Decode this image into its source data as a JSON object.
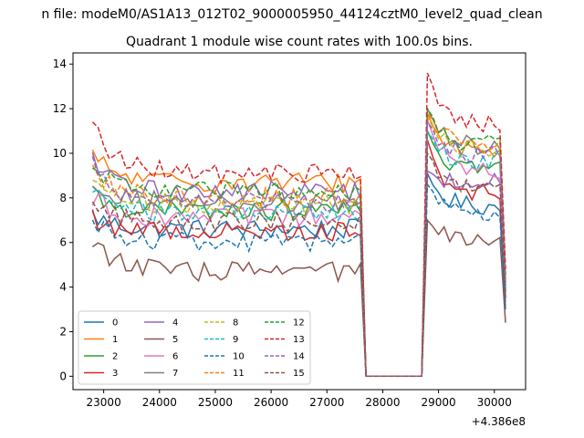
{
  "chart_data": {
    "type": "line",
    "suptitle": "n file: modeM0/AS1A13_012T02_9000005950_44124cztM0_level2_quad_clean",
    "title": "Quadrant 1 module wise count rates with 100.0s bins.",
    "xlabel": "",
    "ylabel": "",
    "x_offset_label": "+4.386e8",
    "xlim": [
      22450,
      30560
    ],
    "ylim": [
      -0.6,
      14.5
    ],
    "x_ticks": [
      23000,
      24000,
      25000,
      26000,
      27000,
      28000,
      29000,
      30000
    ],
    "x_tick_labels": [
      "23000",
      "24000",
      "25000",
      "26000",
      "27000",
      "28000",
      "29000",
      "30000"
    ],
    "y_ticks": [
      0,
      2,
      4,
      6,
      8,
      10,
      12,
      14
    ],
    "y_tick_labels": [
      "0",
      "2",
      "4",
      "6",
      "8",
      "10",
      "12",
      "14"
    ],
    "grid": false,
    "legend": {
      "position": "lower-left",
      "columns": 4
    },
    "time_axis": {
      "start": 22800,
      "step": 100,
      "bins_a": 49,
      "gap_start": 27700,
      "gap_end": 28700,
      "bins_b": 15
    },
    "series": [
      {
        "name": "0",
        "color": "#1f77b4",
        "dash": "solid",
        "mean_a": 6.6,
        "start_a": 7.2,
        "mean_b": 7.6,
        "peak_b": 9.1,
        "end": 3.0
      },
      {
        "name": "1",
        "color": "#ff7f0e",
        "dash": "solid",
        "mean_a": 8.7,
        "start_a": 9.9,
        "mean_b": 10.1,
        "peak_b": 11.8,
        "end": 4.5
      },
      {
        "name": "2",
        "color": "#2ca02c",
        "dash": "solid",
        "mean_a": 7.4,
        "start_a": 8.2,
        "mean_b": 9.3,
        "peak_b": 11.0,
        "end": 3.8
      },
      {
        "name": "3",
        "color": "#d62728",
        "dash": "solid",
        "mean_a": 6.5,
        "start_a": 7.1,
        "mean_b": 8.2,
        "peak_b": 10.6,
        "end": 3.5
      },
      {
        "name": "4",
        "color": "#9467bd",
        "dash": "solid",
        "mean_a": 8.3,
        "start_a": 9.6,
        "mean_b": 8.7,
        "peak_b": 9.2,
        "end": 4.0
      },
      {
        "name": "5",
        "color": "#8c564b",
        "dash": "solid",
        "mean_a": 4.7,
        "start_a": 6.2,
        "mean_b": 6.0,
        "peak_b": 7.0,
        "end": 2.4
      },
      {
        "name": "6",
        "color": "#e377c2",
        "dash": "solid",
        "mean_a": 7.1,
        "start_a": 8.0,
        "mean_b": 9.2,
        "peak_b": 11.5,
        "end": 4.0
      },
      {
        "name": "7",
        "color": "#7f7f7f",
        "dash": "solid",
        "mean_a": 7.8,
        "start_a": 8.8,
        "mean_b": 10.3,
        "peak_b": 12.0,
        "end": 4.2
      },
      {
        "name": "8",
        "color": "#bcbd22",
        "dash": "dashed",
        "mean_a": 7.7,
        "start_a": 9.0,
        "mean_b": 10.1,
        "peak_b": 11.6,
        "end": 4.3
      },
      {
        "name": "9",
        "color": "#17becf",
        "dash": "dashed",
        "mean_a": 7.3,
        "start_a": 8.4,
        "mean_b": 9.6,
        "peak_b": 11.0,
        "end": 3.9
      },
      {
        "name": "10",
        "color": "#1f77b4",
        "dash": "dashed",
        "mean_a": 6.0,
        "start_a": 7.1,
        "mean_b": 7.3,
        "peak_b": 8.6,
        "end": 3.2
      },
      {
        "name": "11",
        "color": "#ff7f0e",
        "dash": "dashed",
        "mean_a": 8.0,
        "start_a": 9.5,
        "mean_b": 10.5,
        "peak_b": 11.8,
        "end": 4.4
      },
      {
        "name": "12",
        "color": "#2ca02c",
        "dash": "dashed",
        "mean_a": 8.3,
        "start_a": 9.3,
        "mean_b": 10.4,
        "peak_b": 12.0,
        "end": 4.6
      },
      {
        "name": "13",
        "color": "#d62728",
        "dash": "dashed",
        "mean_a": 9.1,
        "start_a": 11.3,
        "mean_b": 11.3,
        "peak_b": 13.6,
        "end": 4.8
      },
      {
        "name": "14",
        "color": "#9467bd",
        "dash": "dashed",
        "mean_a": 7.8,
        "start_a": 9.7,
        "mean_b": 9.9,
        "peak_b": 11.4,
        "end": 4.1
      },
      {
        "name": "15",
        "color": "#8c564b",
        "dash": "dashed",
        "mean_a": 6.9,
        "start_a": 7.6,
        "mean_b": 8.4,
        "peak_b": 10.0,
        "end": 3.6
      }
    ]
  }
}
